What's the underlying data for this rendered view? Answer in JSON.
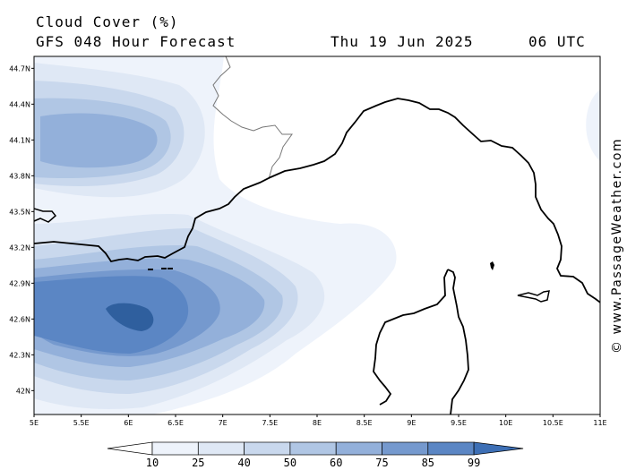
{
  "header": {
    "title": "Cloud Cover (%)",
    "subtitle": "GFS 048 Hour Forecast",
    "date": "Thu 19 Jun 2025",
    "time": "06 UTC"
  },
  "credit": "© www.PassageWeather.com",
  "map": {
    "variable": "cloud cover",
    "lon_range": [
      5,
      11
    ],
    "lat_range": [
      41.8,
      44.8
    ],
    "lat_ticks": [
      "44.7N",
      "44.4N",
      "44.1N",
      "43.8N",
      "43.5N",
      "43.2N",
      "42.9N",
      "42.6N",
      "42.3N",
      "42N"
    ],
    "lon_ticks": [
      "5E",
      "5.5E",
      "6E",
      "6.5E",
      "7E",
      "7.5E",
      "8E",
      "8.5E",
      "9E",
      "9.5E",
      "10E",
      "10.5E",
      "11E"
    ]
  },
  "colorbar": {
    "levels": [
      "10",
      "25",
      "40",
      "50",
      "60",
      "75",
      "85",
      "99"
    ],
    "colors": [
      "#ffffff",
      "#eef3fb",
      "#dfe8f5",
      "#c9d8ed",
      "#b0c6e4",
      "#93b0da",
      "#7599ce",
      "#5b86c4",
      "#3d6fb5"
    ]
  },
  "colors": {
    "land_line": "#000000",
    "border_line": "#777777",
    "shade_1": "#eef3fb",
    "shade_2": "#dfe8f5",
    "shade_3": "#c9d8ed",
    "shade_4": "#b0c6e4",
    "shade_5": "#93b0da",
    "shade_6": "#7599ce",
    "shade_7": "#5b86c4",
    "shade_8": "#2f5f9e"
  }
}
